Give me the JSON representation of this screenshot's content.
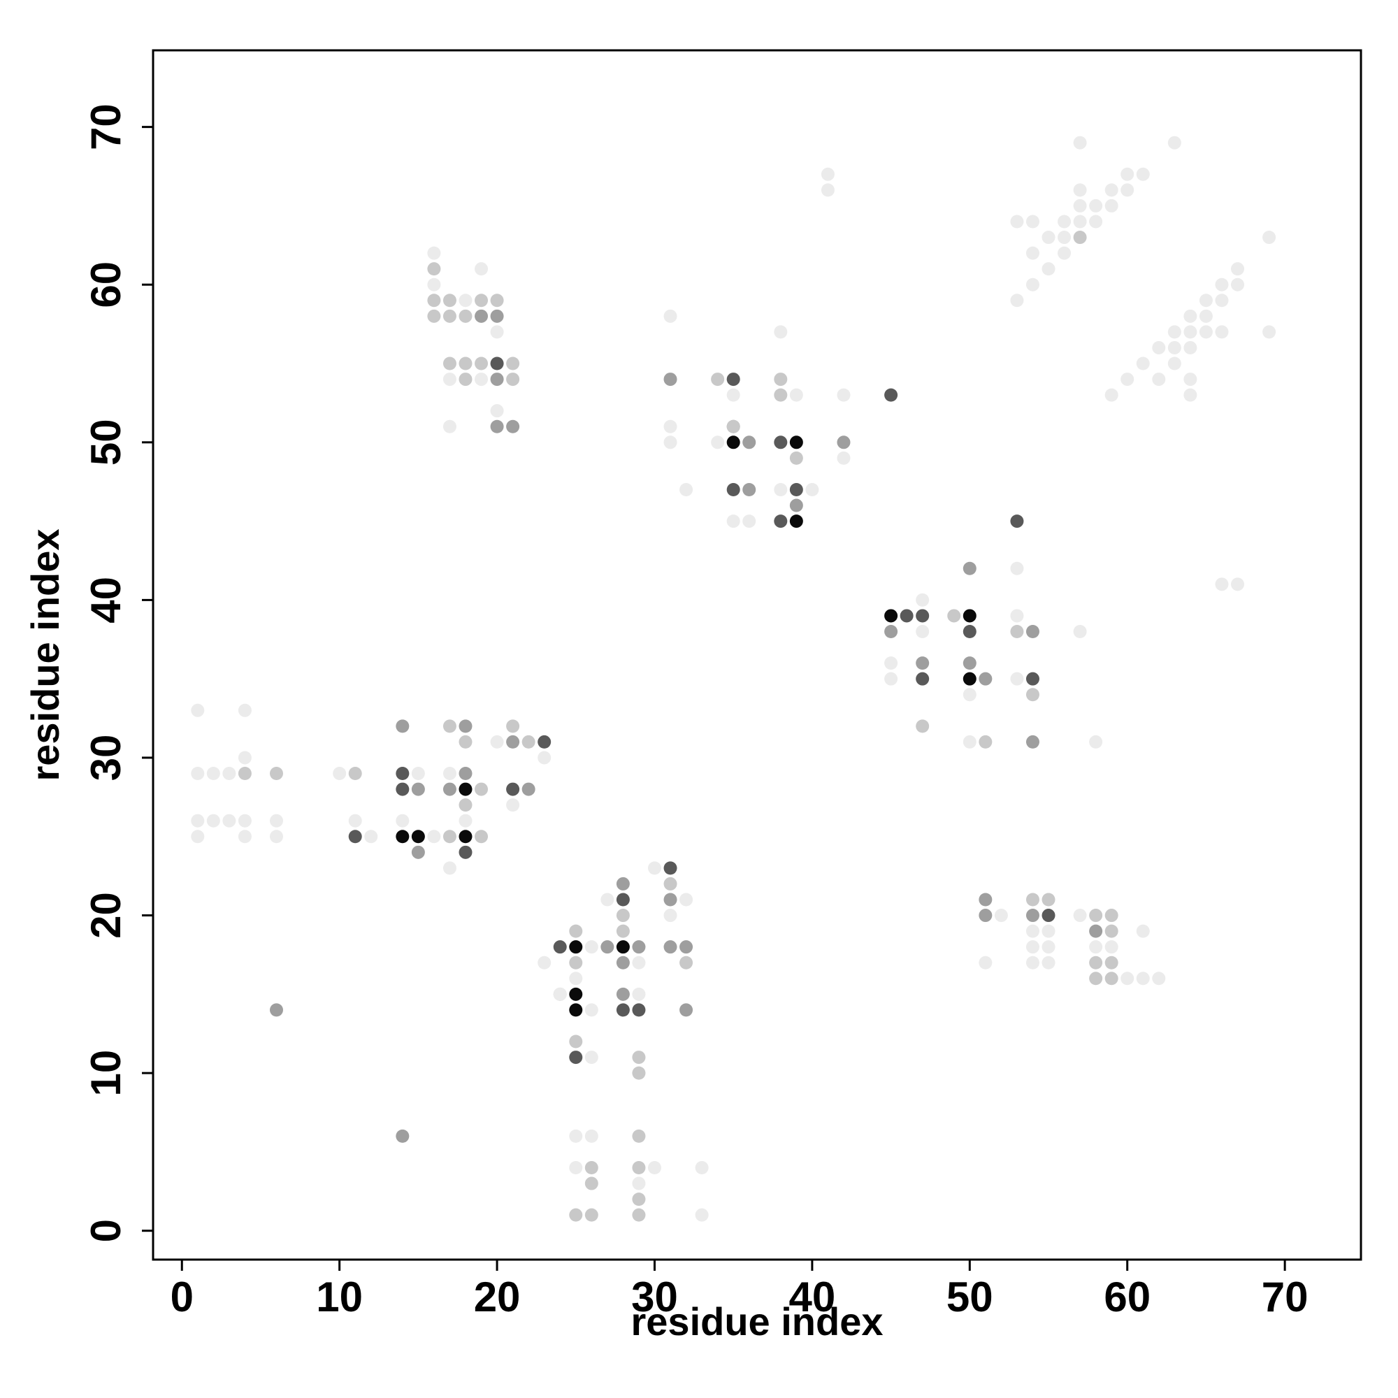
{
  "chart_data": {
    "type": "scatter",
    "x_label": "residue index",
    "y_label": "residue index",
    "xlim": [
      -1.83,
      74.83
    ],
    "ylim": [
      -1.83,
      74.86
    ],
    "xticks": [
      0,
      10,
      20,
      30,
      40,
      50,
      60,
      70
    ],
    "yticks": [
      0,
      10,
      20,
      30,
      40,
      50,
      60,
      70
    ],
    "series": [
      {
        "color": "#0a0a0a",
        "x": [
          14,
          15,
          18,
          18,
          25,
          28,
          25,
          25,
          35,
          39,
          39,
          45,
          50,
          50
        ],
        "y": [
          25,
          25,
          28,
          25,
          18,
          18,
          15,
          14,
          50,
          50,
          45,
          39,
          39,
          35
        ]
      },
      {
        "color": "#595959",
        "x": [
          11,
          14,
          14,
          18,
          23,
          21,
          31,
          28,
          24,
          28,
          29,
          25,
          35,
          45,
          38,
          35,
          39,
          38,
          46,
          47,
          50,
          47,
          54,
          55,
          20,
          53
        ],
        "y": [
          25,
          29,
          28,
          24,
          31,
          28,
          23,
          21,
          18,
          14,
          14,
          11,
          54,
          53,
          50,
          47,
          47,
          45,
          39,
          39,
          38,
          35,
          35,
          20,
          55,
          45
        ]
      },
      {
        "color": "#9e9e9e",
        "x": [
          6,
          14,
          14,
          15,
          15,
          18,
          18,
          17,
          21,
          22,
          28,
          31,
          27,
          29,
          31,
          32,
          28,
          28,
          32,
          19,
          20,
          20,
          20,
          21,
          31,
          35,
          36,
          36,
          39,
          42,
          50,
          45,
          54,
          47,
          50,
          51,
          54,
          51,
          51,
          54,
          58
        ],
        "y": [
          14,
          6,
          32,
          28,
          24,
          32,
          29,
          28,
          31,
          28,
          22,
          21,
          18,
          18,
          18,
          18,
          17,
          15,
          14,
          58,
          58,
          54,
          51,
          51,
          54,
          51,
          50,
          47,
          46,
          50,
          42,
          38,
          38,
          36,
          36,
          35,
          31,
          21,
          20,
          20,
          19
        ]
      },
      {
        "color": "#c8c8c8",
        "x": [
          4,
          6,
          11,
          17,
          18,
          19,
          18,
          17,
          19,
          21,
          22,
          31,
          28,
          25,
          28,
          25,
          32,
          24,
          25,
          29,
          29,
          29,
          26,
          29,
          26,
          29,
          25,
          26,
          29,
          16,
          16,
          17,
          19,
          20,
          16,
          17,
          18,
          17,
          18,
          19,
          21,
          18,
          21,
          34,
          38,
          38,
          35,
          39,
          49,
          53,
          47,
          51,
          54,
          54,
          55,
          58,
          59,
          59,
          58,
          59,
          58,
          59,
          57
        ],
        "y": [
          29,
          29,
          29,
          32,
          31,
          28,
          27,
          25,
          25,
          32,
          31,
          22,
          20,
          19,
          19,
          17,
          17,
          15,
          12,
          11,
          10,
          6,
          4,
          4,
          3,
          2,
          1,
          1,
          1,
          61,
          59,
          59,
          59,
          59,
          58,
          58,
          58,
          55,
          55,
          55,
          55,
          54,
          54,
          54,
          54,
          53,
          51,
          49,
          39,
          38,
          32,
          31,
          34,
          21,
          21,
          20,
          20,
          19,
          17,
          17,
          16,
          16,
          63
        ]
      },
      {
        "color": "#ebebeb",
        "x": [
          1,
          4,
          4,
          1,
          2,
          3,
          1,
          2,
          3,
          4,
          6,
          1,
          4,
          6,
          10,
          11,
          12,
          15,
          14,
          16,
          17,
          18,
          17,
          20,
          23,
          21,
          30,
          27,
          32,
          31,
          26,
          23,
          29,
          25,
          24,
          29,
          26,
          26,
          25,
          26,
          25,
          30,
          33,
          29,
          33,
          16,
          19,
          16,
          18,
          20,
          17,
          19,
          20,
          17,
          31,
          38,
          35,
          39,
          42,
          31,
          31,
          34,
          42,
          32,
          38,
          40,
          35,
          36,
          41,
          41,
          53,
          47,
          53,
          47,
          57,
          45,
          45,
          53,
          50,
          50,
          58,
          66,
          67,
          52,
          57,
          54,
          55,
          61,
          54,
          55,
          58,
          59,
          51,
          54,
          55,
          60,
          61,
          62,
          57,
          63,
          60,
          61,
          57,
          59,
          60,
          57,
          58,
          59,
          56,
          57,
          58,
          53,
          54,
          55,
          56,
          54,
          56,
          55,
          54,
          53,
          69,
          67,
          66,
          67,
          65,
          66,
          64,
          65,
          63,
          64,
          65,
          66,
          69,
          62,
          63,
          64,
          61,
          63,
          60,
          62,
          64,
          59,
          64
        ],
        "y": [
          33,
          33,
          30,
          29,
          29,
          29,
          26,
          26,
          26,
          26,
          26,
          25,
          25,
          25,
          29,
          26,
          25,
          29,
          26,
          25,
          29,
          26,
          23,
          31,
          30,
          27,
          23,
          21,
          21,
          20,
          18,
          17,
          17,
          16,
          15,
          15,
          14,
          11,
          6,
          6,
          4,
          4,
          4,
          3,
          1,
          62,
          61,
          60,
          59,
          57,
          54,
          54,
          52,
          51,
          58,
          57,
          53,
          53,
          53,
          51,
          50,
          50,
          49,
          47,
          47,
          47,
          45,
          45,
          67,
          66,
          42,
          40,
          39,
          38,
          38,
          36,
          35,
          35,
          34,
          31,
          31,
          41,
          41,
          20,
          20,
          19,
          19,
          19,
          18,
          18,
          18,
          18,
          17,
          17,
          17,
          16,
          16,
          16,
          69,
          69,
          67,
          67,
          66,
          66,
          66,
          65,
          65,
          65,
          64,
          64,
          64,
          64,
          64,
          63,
          63,
          62,
          62,
          61,
          60,
          59,
          63,
          61,
          60,
          60,
          59,
          59,
          58,
          58,
          57,
          57,
          57,
          57,
          57,
          56,
          56,
          56,
          55,
          55,
          54,
          54,
          54,
          53,
          53
        ]
      }
    ]
  }
}
